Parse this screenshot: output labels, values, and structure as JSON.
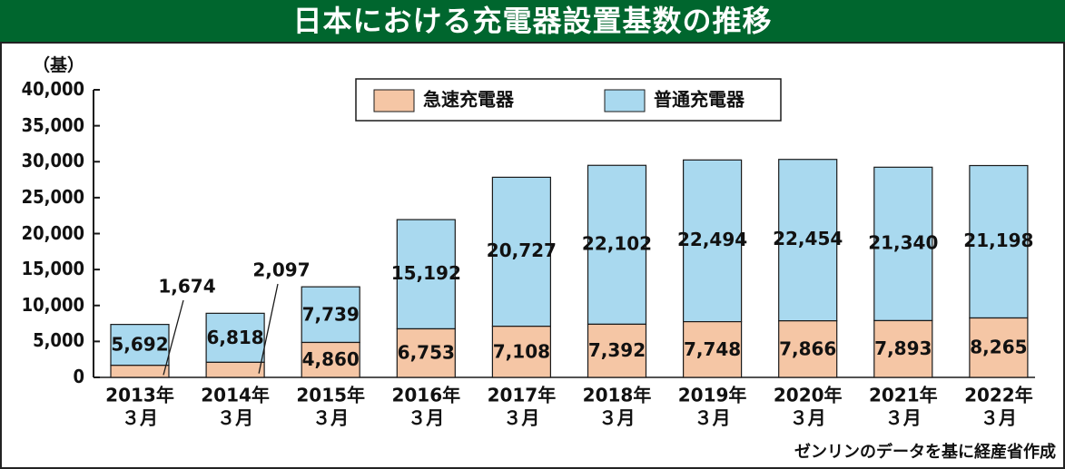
{
  "title": "日本における充電器設置基数の推移",
  "unit_label": "（基）",
  "source_note": "ゼンリンのデータを基に経産省作成",
  "colors": {
    "banner": "#00662e",
    "fast": "#f5c6a5",
    "normal": "#a9d9ef",
    "outline": "#1a1a1a"
  },
  "chart_data": {
    "type": "bar",
    "stacked": true,
    "categories": [
      [
        "2013年",
        "３月"
      ],
      [
        "2014年",
        "３月"
      ],
      [
        "2015年",
        "３月"
      ],
      [
        "2016年",
        "３月"
      ],
      [
        "2017年",
        "３月"
      ],
      [
        "2018年",
        "３月"
      ],
      [
        "2019年",
        "３月"
      ],
      [
        "2020年",
        "３月"
      ],
      [
        "2021年",
        "３月"
      ],
      [
        "2022年",
        "３月"
      ]
    ],
    "series": [
      {
        "name": "急速充電器",
        "color": "#f5c6a5",
        "values": [
          1674,
          2097,
          4860,
          6753,
          7108,
          7392,
          7748,
          7866,
          7893,
          8265
        ],
        "labels": [
          "1,674",
          "2,097",
          "4,860",
          "6,753",
          "7,108",
          "7,392",
          "7,748",
          "7,866",
          "7,893",
          "8,265"
        ]
      },
      {
        "name": "普通充電器",
        "color": "#a9d9ef",
        "values": [
          5692,
          6818,
          7739,
          15192,
          20727,
          22102,
          22494,
          22454,
          21340,
          21198
        ],
        "labels": [
          "5,692",
          "6,818",
          "7,739",
          "15,192",
          "20,727",
          "22,102",
          "22,494",
          "22,454",
          "21,340",
          "21,198"
        ]
      }
    ],
    "ylim": [
      0,
      40000
    ],
    "yticks": [
      "0",
      "5,000",
      "10,000",
      "15,000",
      "20,000",
      "25,000",
      "30,000",
      "35,000",
      "40,000"
    ],
    "grid": false,
    "legend_position": "top-center"
  }
}
